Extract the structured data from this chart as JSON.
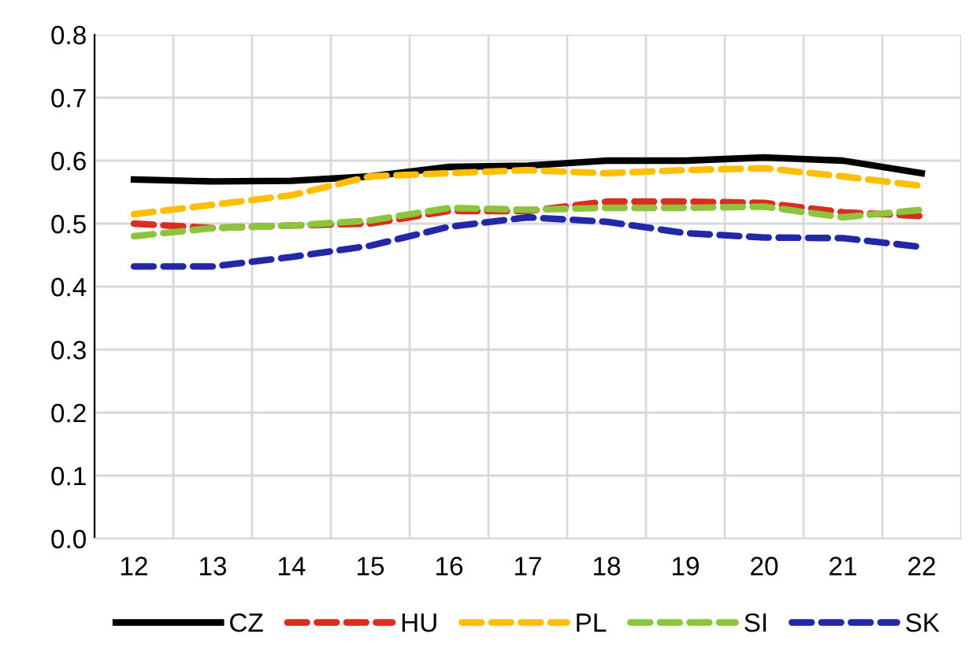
{
  "chart_data": {
    "type": "line",
    "categories": [
      "12",
      "13",
      "14",
      "15",
      "16",
      "17",
      "18",
      "19",
      "20",
      "21",
      "22"
    ],
    "ylim": [
      0,
      0.8
    ],
    "yticks": [
      {
        "value": 0,
        "label": "0.0"
      },
      0.1,
      0.2,
      0.3,
      0.4,
      0.5,
      0.6,
      0.7,
      0.8
    ],
    "grid": true,
    "legend": "bottom",
    "marker": "none",
    "series": [
      {
        "name": "CZ",
        "color": "#000000",
        "line_style": "solid",
        "values": [
          0.57,
          0.567,
          0.568,
          0.575,
          0.59,
          0.592,
          0.6,
          0.6,
          0.605,
          0.6,
          0.58
        ]
      },
      {
        "name": "HU",
        "color": "#dc2c1f",
        "line_style": "dashed",
        "values": [
          0.5,
          0.493,
          0.497,
          0.5,
          0.52,
          0.52,
          0.535,
          0.535,
          0.533,
          0.518,
          0.512
        ]
      },
      {
        "name": "PL",
        "color": "#ffbf00",
        "line_style": "dashed",
        "values": [
          0.515,
          0.53,
          0.545,
          0.575,
          0.58,
          0.585,
          0.58,
          0.585,
          0.588,
          0.575,
          0.56
        ]
      },
      {
        "name": "SI",
        "color": "#8cc43c",
        "line_style": "dashed",
        "values": [
          0.48,
          0.493,
          0.497,
          0.505,
          0.525,
          0.522,
          0.525,
          0.525,
          0.527,
          0.51,
          0.522
        ]
      },
      {
        "name": "SK",
        "color": "#2228a8",
        "line_style": "dashed",
        "values": [
          0.432,
          0.432,
          0.447,
          0.465,
          0.495,
          0.51,
          0.503,
          0.485,
          0.478,
          0.477,
          0.463
        ]
      }
    ]
  }
}
